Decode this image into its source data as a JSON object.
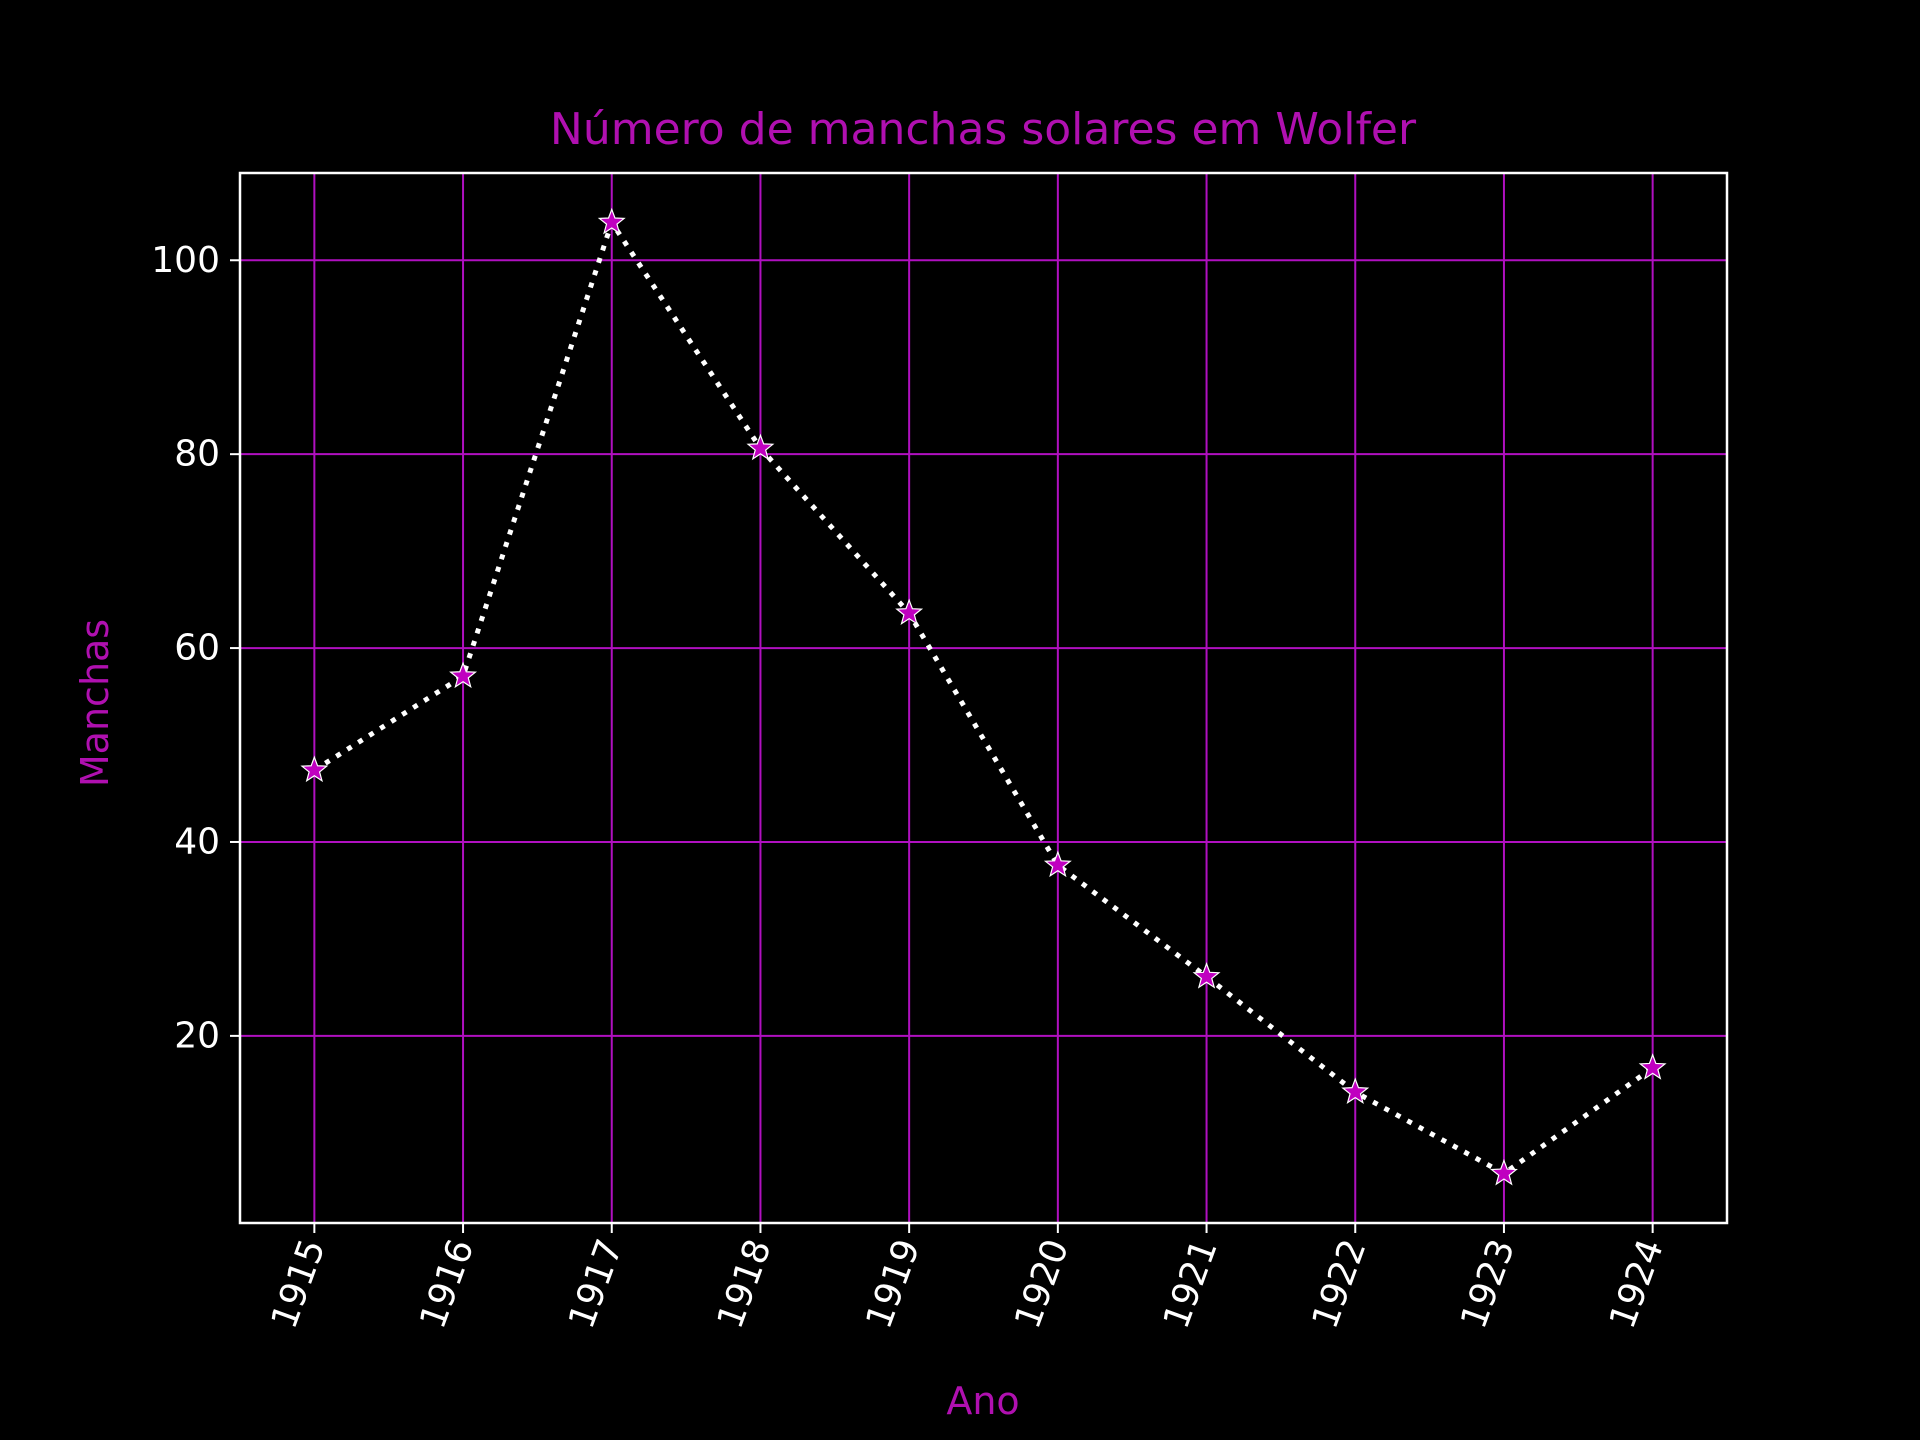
{
  "chart_data": {
    "type": "line",
    "title": "Número de manchas solares em Wolfer",
    "xlabel": "Ano",
    "ylabel": "Manchas",
    "x": [
      1915,
      1916,
      1917,
      1918,
      1919,
      1920,
      1921,
      1922,
      1923,
      1924
    ],
    "xticklabels": [
      "1915",
      "1916",
      "1917",
      "1918",
      "1919",
      "1920",
      "1921",
      "1922",
      "1923",
      "1924"
    ],
    "yticks": [
      20,
      40,
      60,
      80,
      100
    ],
    "yticklabels": [
      "20",
      "40",
      "60",
      "80",
      "100"
    ],
    "series": [
      {
        "values": [
          47.4,
          57.1,
          103.9,
          80.6,
          63.6,
          37.6,
          26.1,
          14.2,
          5.8,
          16.7
        ],
        "line_style": "dotted",
        "line_color": "#ffffff",
        "marker": "star",
        "marker_color": "#c000c0"
      }
    ],
    "xlim": [
      1914.5,
      1924.5
    ],
    "ylim": [
      0.7,
      109.0
    ],
    "xtick_rotation_deg": 70,
    "grid": true,
    "colors": {
      "background": "#000000",
      "axes_frame": "#ffffff",
      "grid": "#b010c0",
      "title": "#b010b0",
      "axis_label": "#b010b0",
      "tick_label": "#ffffff"
    }
  }
}
